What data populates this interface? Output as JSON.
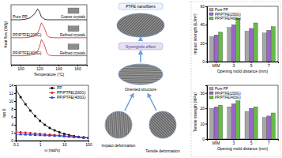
{
  "chart_data": [
    {
      "type": "line",
      "x_label": "Temperature (°C)",
      "y_label": "Heat flow (W/g)",
      "x": [
        90,
        95,
        100,
        105,
        110,
        115,
        118,
        120,
        122,
        125,
        128,
        130,
        135,
        140,
        150,
        160,
        170
      ],
      "series": [
        {
          "name": "Pure PP",
          "color": "#000000",
          "line_style": "solid",
          "values": [
            7.5,
            7.5,
            7.5,
            7.6,
            7.8,
            8.5,
            9.3,
            8.8,
            8.0,
            7.6,
            7.5,
            7.5,
            7.5,
            7.5,
            7.5,
            7.5,
            7.5
          ]
        },
        {
          "name": "PP/PTFE(200G)",
          "color": "#d62728",
          "line_style": "solid",
          "values": [
            4.5,
            4.5,
            4.5,
            4.5,
            4.6,
            4.8,
            5.3,
            6.0,
            7.0,
            6.2,
            4.9,
            4.6,
            4.5,
            4.5,
            4.5,
            4.5,
            4.5
          ]
        },
        {
          "name": "PP/PTFE(400G)",
          "color": "#d62728",
          "line_style": "solid",
          "values": [
            1.5,
            1.5,
            1.5,
            1.5,
            1.6,
            1.8,
            2.3,
            3.0,
            4.2,
            3.4,
            1.9,
            1.6,
            1.5,
            1.5,
            1.5,
            1.5,
            1.5
          ]
        }
      ],
      "annotations": [
        "Coarse crystals",
        "Refined crystals",
        "Refined crystals"
      ],
      "xlim": [
        90,
        170
      ],
      "xticks": [
        100,
        120,
        140,
        160
      ],
      "ylim": [
        0,
        10
      ],
      "tick_labels": "x"
    },
    {
      "type": "line",
      "log": "x",
      "x_label": "ω (rad/s)",
      "y_label": "tan δ",
      "x": [
        0.1,
        0.158,
        0.251,
        0.398,
        0.631,
        1,
        1.58,
        2.51,
        3.98,
        6.31,
        10,
        15.8,
        25.1,
        39.8,
        63.1,
        100
      ],
      "series": [
        {
          "name": "PP",
          "color": "#000000",
          "marker": "square",
          "line_style": "solid",
          "values": [
            13,
            11,
            9.2,
            7.6,
            6.2,
            5,
            4,
            3.2,
            2.6,
            2.1,
            1.7,
            1.4,
            1.15,
            0.95,
            0.8,
            0.7
          ]
        },
        {
          "name": "PP/PTFE(200G)",
          "color": "#e31a1c",
          "marker": "circle",
          "line_style": "solid",
          "values": [
            2.2,
            2.1,
            2.0,
            1.9,
            1.8,
            1.7,
            1.6,
            1.5,
            1.4,
            1.3,
            1.2,
            1.1,
            1.0,
            0.9,
            0.8,
            0.7
          ]
        },
        {
          "name": "PP/PTFE(400G)",
          "color": "#1f3fd6",
          "marker": "triangle",
          "line_style": "solid",
          "values": [
            1.6,
            1.6,
            1.55,
            1.5,
            1.45,
            1.4,
            1.35,
            1.3,
            1.25,
            1.2,
            1.1,
            1.0,
            0.9,
            0.85,
            0.75,
            0.65
          ]
        }
      ],
      "xlim": [
        0.1,
        100
      ],
      "xticks": [
        0.1,
        1,
        10,
        100
      ],
      "ylim": [
        0,
        14
      ],
      "yticks": [
        0,
        2,
        4,
        6,
        8,
        10,
        12,
        14
      ],
      "legend": "upper right"
    },
    {
      "type": "bar",
      "x_label": "Opening mold distance (mm)",
      "y_label": "Impact strength (kJ/m²)",
      "categories": [
        "MIM",
        "3",
        "5",
        "7"
      ],
      "series": [
        {
          "name": "Pure PP",
          "color": "#a6a6a6",
          "values": [
            27,
            37,
            33,
            31
          ]
        },
        {
          "name": "PP/PTFE(200G)",
          "color": "#9966cc",
          "values": [
            29,
            40,
            36,
            34
          ]
        },
        {
          "name": "PP/PTFE(400G)",
          "color": "#66bb44",
          "values": [
            32,
            47,
            42,
            38
          ]
        }
      ],
      "ylim": [
        0,
        60
      ],
      "yticks": [
        0,
        20,
        40,
        60
      ],
      "legend": "upper left"
    },
    {
      "type": "bar",
      "x_label": "Opening mold distance (mm)",
      "y_label": "Tensile strength (MPa)",
      "categories": [
        "MIM",
        "3",
        "5",
        "7"
      ],
      "series": [
        {
          "name": "Pure PP",
          "color": "#a6a6a6",
          "values": [
            20,
            21,
            18,
            14
          ]
        },
        {
          "name": "PP/PTFE(200G)",
          "color": "#9966cc",
          "values": [
            21,
            23,
            20,
            15
          ]
        },
        {
          "name": "PP/PTFE(400G)",
          "color": "#66bb44",
          "values": [
            22,
            25,
            21,
            17
          ]
        }
      ],
      "ylim": [
        0,
        35
      ],
      "yticks": [
        0,
        10,
        20,
        30
      ],
      "legend": "upper left"
    }
  ],
  "diagram": {
    "labels": {
      "top": "PTFE nanofibers",
      "synergy": "Synergistic effect",
      "middle": "Oriented structure",
      "left": "Impact deformation",
      "right": "Tensile deformation"
    }
  }
}
